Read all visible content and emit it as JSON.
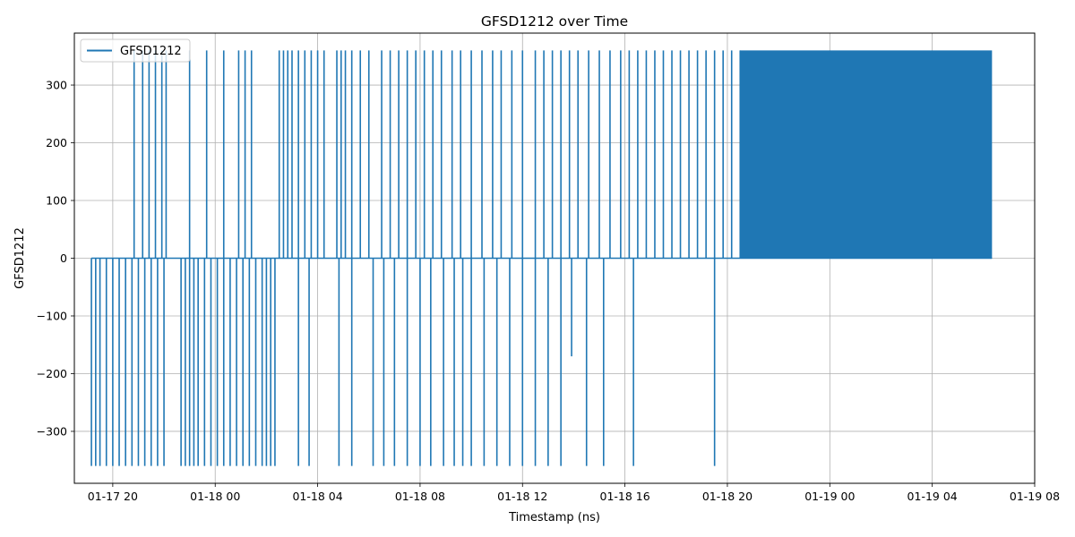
{
  "chart_data": {
    "type": "line",
    "title": "GFSD1212 over Time",
    "xlabel": "Timestamp (ns)",
    "ylabel": "GFSD1212",
    "x_axis": "time",
    "xlim": [
      "2025-01-17T18:30",
      "2025-01-19T08:00"
    ],
    "ylim": [
      -390,
      390
    ],
    "x_ticks": [
      {
        "t": "2025-01-17T20:00",
        "label": "01-17 20"
      },
      {
        "t": "2025-01-18T00:00",
        "label": "01-18 00"
      },
      {
        "t": "2025-01-18T04:00",
        "label": "01-18 04"
      },
      {
        "t": "2025-01-18T08:00",
        "label": "01-18 08"
      },
      {
        "t": "2025-01-18T12:00",
        "label": "01-18 12"
      },
      {
        "t": "2025-01-18T16:00",
        "label": "01-18 16"
      },
      {
        "t": "2025-01-18T20:00",
        "label": "01-18 20"
      },
      {
        "t": "2025-01-19T00:00",
        "label": "01-19 00"
      },
      {
        "t": "2025-01-19T04:00",
        "label": "01-19 04"
      },
      {
        "t": "2025-01-19T08:00",
        "label": "01-19 08"
      }
    ],
    "y_ticks": [
      {
        "v": 300,
        "label": "300"
      },
      {
        "v": 200,
        "label": "200"
      },
      {
        "v": 100,
        "label": "100"
      },
      {
        "v": 0,
        "label": "0"
      },
      {
        "v": -100,
        "label": "−100"
      },
      {
        "v": -200,
        "label": "−200"
      },
      {
        "v": -300,
        "label": "−300"
      }
    ],
    "grid": true,
    "legend": "upper-left",
    "series": [
      {
        "name": "GFSD1212",
        "color": "#1f77b4",
        "baseline": 0,
        "spikes_positive_value": 360,
        "spikes_negative_value": -360,
        "spike_times_positive": [
          "2025-01-17T20:50",
          "2025-01-17T21:10",
          "2025-01-17T21:25",
          "2025-01-17T21:40",
          "2025-01-17T21:55",
          "2025-01-17T22:05",
          "2025-01-17T23:00",
          "2025-01-17T23:40",
          "2025-01-18T00:20",
          "2025-01-18T00:55",
          "2025-01-18T01:10",
          "2025-01-18T01:25",
          "2025-01-18T02:30",
          "2025-01-18T02:40",
          "2025-01-18T02:50",
          "2025-01-18T03:00",
          "2025-01-18T03:15",
          "2025-01-18T03:30",
          "2025-01-18T03:45",
          "2025-01-18T04:00",
          "2025-01-18T04:15",
          "2025-01-18T04:45",
          "2025-01-18T04:55",
          "2025-01-18T05:05",
          "2025-01-18T05:20",
          "2025-01-18T05:40",
          "2025-01-18T06:00",
          "2025-01-18T06:30",
          "2025-01-18T06:50",
          "2025-01-18T07:10",
          "2025-01-18T07:30",
          "2025-01-18T07:50",
          "2025-01-18T08:10",
          "2025-01-18T08:30",
          "2025-01-18T08:50",
          "2025-01-18T09:15",
          "2025-01-18T09:35",
          "2025-01-18T10:00",
          "2025-01-18T10:25",
          "2025-01-18T10:50",
          "2025-01-18T11:10",
          "2025-01-18T11:35",
          "2025-01-18T12:00",
          "2025-01-18T12:30",
          "2025-01-18T12:50",
          "2025-01-18T13:10",
          "2025-01-18T13:30",
          "2025-01-18T13:50",
          "2025-01-18T14:10",
          "2025-01-18T14:35",
          "2025-01-18T15:00",
          "2025-01-18T15:25",
          "2025-01-18T15:50",
          "2025-01-18T16:10",
          "2025-01-18T16:30",
          "2025-01-18T16:50",
          "2025-01-18T17:10",
          "2025-01-18T17:30",
          "2025-01-18T17:50",
          "2025-01-18T18:10",
          "2025-01-18T18:30",
          "2025-01-18T18:50",
          "2025-01-18T19:10",
          "2025-01-18T19:30",
          "2025-01-18T19:50",
          "2025-01-18T20:10",
          "2025-01-18T20:30"
        ],
        "spike_times_negative": [
          "2025-01-17T19:10",
          "2025-01-17T19:20",
          "2025-01-17T19:30",
          "2025-01-17T19:45",
          "2025-01-17T20:00",
          "2025-01-17T20:15",
          "2025-01-17T20:30",
          "2025-01-17T20:45",
          "2025-01-17T21:00",
          "2025-01-17T21:15",
          "2025-01-17T21:30",
          "2025-01-17T21:45",
          "2025-01-17T22:00",
          "2025-01-17T22:40",
          "2025-01-17T22:50",
          "2025-01-17T23:00",
          "2025-01-17T23:10",
          "2025-01-17T23:20",
          "2025-01-17T23:35",
          "2025-01-17T23:50",
          "2025-01-18T00:05",
          "2025-01-18T00:20",
          "2025-01-18T00:35",
          "2025-01-18T00:50",
          "2025-01-18T01:05",
          "2025-01-18T01:20",
          "2025-01-18T01:35",
          "2025-01-18T01:50",
          "2025-01-18T02:00",
          "2025-01-18T02:10",
          "2025-01-18T02:20",
          "2025-01-18T03:15",
          "2025-01-18T03:40",
          "2025-01-18T04:50",
          "2025-01-18T05:20",
          "2025-01-18T06:10",
          "2025-01-18T06:35",
          "2025-01-18T07:00",
          "2025-01-18T07:30",
          "2025-01-18T08:00",
          "2025-01-18T08:25",
          "2025-01-18T08:55",
          "2025-01-18T09:20",
          "2025-01-18T09:40",
          "2025-01-18T10:00",
          "2025-01-18T10:30",
          "2025-01-18T11:00",
          "2025-01-18T11:30",
          "2025-01-18T12:00",
          "2025-01-18T12:30",
          "2025-01-18T13:00",
          "2025-01-18T13:30",
          "2025-01-18T14:30",
          "2025-01-18T15:10",
          "2025-01-18T16:20",
          "2025-01-18T19:30"
        ],
        "dense_band": {
          "start": "2025-01-18T20:30",
          "end": "2025-01-19T06:20",
          "low": 0,
          "high": 360
        },
        "dip": {
          "time": "2025-01-18T13:55",
          "value": -170
        }
      }
    ]
  }
}
